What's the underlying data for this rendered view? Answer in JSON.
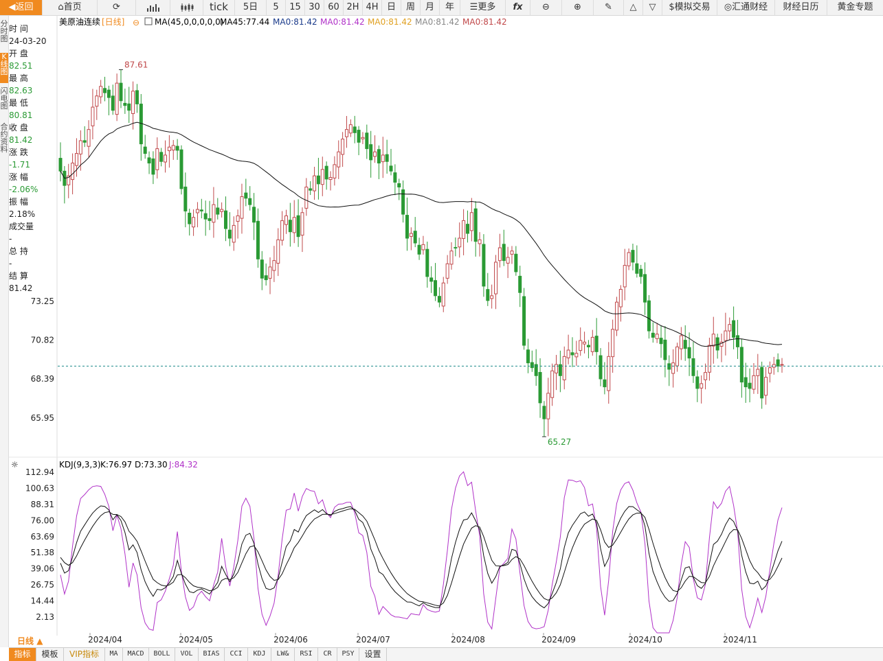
{
  "toolbar": {
    "back": "返回",
    "home": "首页",
    "tick": "tick",
    "periods": [
      "5日",
      "5",
      "15",
      "30",
      "60",
      "2H",
      "4H",
      "日",
      "周",
      "月",
      "年"
    ],
    "more": "更多",
    "fx": "fx",
    "sim": "模拟交易",
    "huitong": "汇通财经",
    "calendar": "财经日历",
    "gold": "黄金专题"
  },
  "sidetabs": [
    "分时图",
    "K线图",
    "闪电图",
    "合约资料"
  ],
  "info": {
    "time_label": "时 间",
    "time": "24-03-20",
    "open_label": "开 盘",
    "open": "82.51",
    "high_label": "最 高",
    "high": "82.63",
    "low_label": "最 低",
    "low": "80.81",
    "close_label": "收 盘",
    "close": "81.42",
    "change_label": "涨 跌",
    "change": "-1.71",
    "pct_label": "涨 幅",
    "pct": "-2.06%",
    "amp_label": "振 幅",
    "amp": "2.18%",
    "vol_label": "成交量",
    "vol": "-",
    "oi_label": "总 持",
    "oi": "-",
    "settle_label": "结 算",
    "settle": "81.42"
  },
  "header": {
    "name": "美原油连续",
    "period": "[日线]",
    "ma_params": "MA(45,0,0,0,0,0)",
    "ma45": "MA45:77.44",
    "ma0": [
      "MA0:81.42",
      "MA0:81.42",
      "MA0:81.42",
      "MA0:81.42",
      "MA0:81.42"
    ]
  },
  "kdj_header": {
    "params": "KDJ(9,3,3)",
    "k": "K:76.97",
    "d": "D:73.30",
    "j": "J:84.32"
  },
  "period_tab": "日线",
  "bottom_tabs": [
    "指标",
    "模板",
    "VIP指标",
    "MA",
    "MACD",
    "BOLL",
    "VOL",
    "BIAS",
    "CCI",
    "KDJ",
    "LW&",
    "RSI",
    "CR",
    "PSY",
    "设置"
  ],
  "colors": {
    "up": "#c0484a",
    "down": "#2a9a34",
    "ma": "#111111",
    "k": "#111111",
    "d": "#111111",
    "j": "#b031c8",
    "accent": "#f08a1f",
    "last_price_line": "#1a8a8a"
  },
  "chart_data": [
    {
      "type": "candlestick",
      "title": "美原油连续 [日线]",
      "x_ticks": [
        "2024/04",
        "2024/05",
        "2024/06",
        "2024/07",
        "2024/08",
        "2024/09",
        "2024/10",
        "2024/11"
      ],
      "y_ticks": [
        73.25,
        70.82,
        68.39,
        65.95
      ],
      "last_price": 69.2,
      "annotations": [
        {
          "text": "87.61",
          "type": "max"
        },
        {
          "text": "65.27",
          "type": "min"
        }
      ],
      "closes": [
        81.4,
        80.5,
        81.1,
        81.9,
        82.5,
        83.3,
        83.2,
        84.0,
        85.4,
        86.1,
        86.7,
        86.3,
        86.0,
        85.2,
        86.9,
        85.8,
        85.5,
        85.2,
        86.4,
        85.6,
        83.1,
        82.5,
        81.9,
        81.2,
        82.8,
        82.0,
        82.4,
        82.9,
        83.0,
        82.7,
        80.3,
        78.9,
        78.1,
        78.5,
        79.0,
        78.9,
        78.4,
        78.3,
        79.3,
        78.7,
        79.0,
        77.8,
        77.2,
        78.0,
        78.6,
        79.8,
        79.7,
        79.3,
        78.2,
        75.9,
        74.7,
        74.6,
        75.4,
        75.8,
        77.1,
        78.3,
        78.6,
        77.6,
        78.5,
        77.3,
        78.8,
        80.4,
        80.2,
        81.1,
        80.6,
        81.5,
        80.9,
        81.0,
        81.8,
        82.6,
        83.4,
        84.0,
        84.3,
        83.8,
        83.2,
        83.5,
        82.8,
        82.1,
        82.6,
        81.9,
        82.4,
        82.0,
        81.4,
        80.7,
        80.4,
        78.7,
        77.2,
        77.5,
        76.9,
        76.2,
        76.8,
        74.8,
        74.5,
        73.6,
        73.2,
        74.4,
        75.6,
        76.4,
        76.6,
        77.2,
        78.3,
        77.5,
        78.8,
        77.0,
        77.1,
        74.2,
        73.3,
        73.6,
        75.7,
        76.6,
        75.8,
        76.0,
        76.4,
        75.1,
        73.8,
        70.5,
        69.4,
        69.1,
        68.6,
        66.9,
        65.9,
        67.5,
        68.9,
        69.3,
        68.6,
        69.8,
        70.2,
        69.9,
        70.0,
        70.8,
        70.7,
        70.4,
        71.0,
        70.1,
        68.4,
        67.9,
        69.8,
        71.5,
        73.2,
        74.0,
        75.5,
        76.3,
        75.7,
        75.0,
        74.8,
        73.2,
        71.4,
        71.0,
        71.2,
        70.6,
        69.6,
        69.0,
        69.4,
        70.4,
        71.1,
        70.3,
        69.7,
        68.6,
        67.8,
        68.1,
        68.8,
        70.5,
        71.2,
        70.2,
        70.7,
        71.4,
        71.8,
        71.0,
        70.4,
        68.2,
        67.9,
        67.8,
        68.6,
        69.0,
        67.2,
        68.5,
        69.1,
        69.3,
        69.2,
        69.3
      ]
    },
    {
      "type": "line",
      "title": "KDJ(9,3,3)",
      "y_ticks": [
        112.94,
        100.63,
        88.31,
        76.0,
        63.69,
        51.38,
        39.06,
        26.75,
        14.44,
        2.13
      ],
      "series": [
        {
          "name": "K"
        },
        {
          "name": "D"
        },
        {
          "name": "J"
        }
      ]
    }
  ]
}
